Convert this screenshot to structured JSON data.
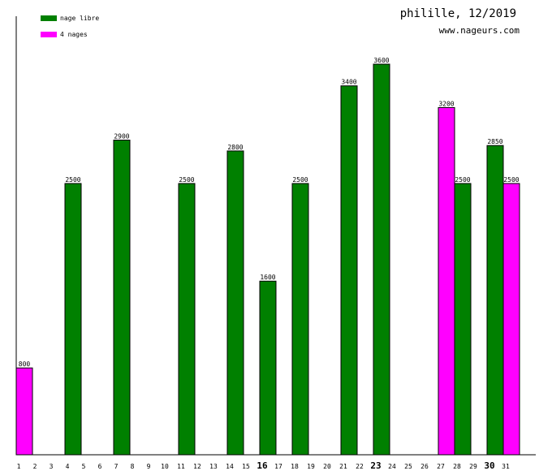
{
  "header": {
    "title": "philille, 12/2019",
    "site": "www.nageurs.com"
  },
  "legend": [
    {
      "label": "nage libre",
      "color": "#008000"
    },
    {
      "label": "4 nages",
      "color": "#ff00ff"
    }
  ],
  "chart_data": {
    "type": "bar",
    "title": "philille, 12/2019",
    "xlabel": "",
    "ylabel": "",
    "ylim": [
      0,
      3600
    ],
    "categories": [
      "1",
      "2",
      "3",
      "4",
      "5",
      "6",
      "7",
      "8",
      "9",
      "10",
      "11",
      "12",
      "13",
      "14",
      "15",
      "16",
      "17",
      "18",
      "19",
      "20",
      "21",
      "22",
      "23",
      "24",
      "25",
      "26",
      "27",
      "28",
      "29",
      "30",
      "31"
    ],
    "bold_categories": [
      "16",
      "23",
      "30"
    ],
    "series": [
      {
        "name": "nage libre",
        "color": "#008000",
        "points": [
          {
            "day": 4,
            "value": 2500
          },
          {
            "day": 7,
            "value": 2900
          },
          {
            "day": 11,
            "value": 2500
          },
          {
            "day": 14,
            "value": 2800
          },
          {
            "day": 16,
            "value": 1600
          },
          {
            "day": 18,
            "value": 2500
          },
          {
            "day": 21,
            "value": 3400
          },
          {
            "day": 23,
            "value": 3600
          },
          {
            "day": 28,
            "value": 2500
          },
          {
            "day": 30,
            "value": 2850
          }
        ]
      },
      {
        "name": "4 nages",
        "color": "#ff00ff",
        "points": [
          {
            "day": 1,
            "value": 800
          },
          {
            "day": 27,
            "value": 3200
          },
          {
            "day": 31,
            "value": 2500
          }
        ]
      }
    ]
  }
}
